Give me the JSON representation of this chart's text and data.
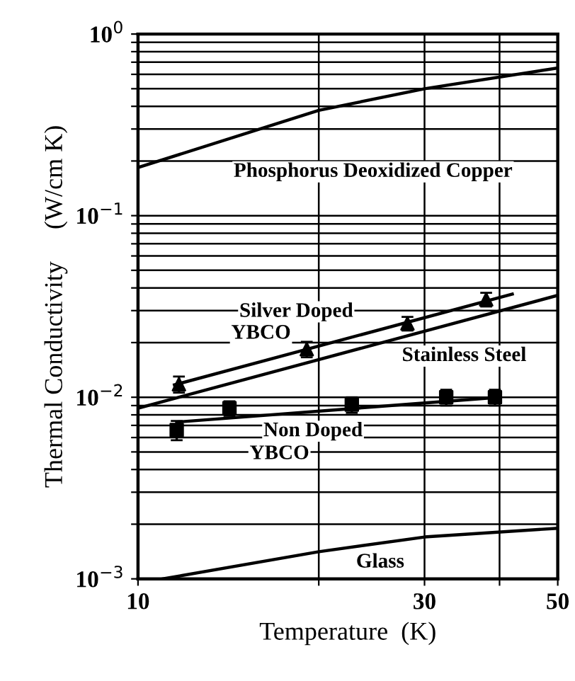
{
  "chart_data": {
    "type": "line",
    "xlabel": "Temperature  (K)",
    "ylabel": "Thermal Conductivity     (W/cm K)",
    "log": "xy",
    "grid": true,
    "xlim": [
      10,
      50
    ],
    "xticks": [
      10,
      {
        "value": 20,
        "label": null
      },
      30,
      {
        "value": 40,
        "label": null
      },
      50
    ],
    "ylim": [
      0.001,
      1
    ],
    "yticks": [
      {
        "value": 0.001,
        "label": "10$^{−3}$"
      },
      {
        "value": 0.002,
        "label": null
      },
      {
        "value": 0.003,
        "label": null
      },
      {
        "value": 0.004,
        "label": null
      },
      {
        "value": 0.005,
        "label": null
      },
      {
        "value": 0.006,
        "label": null
      },
      {
        "value": 0.007,
        "label": null
      },
      {
        "value": 0.008,
        "label": null
      },
      {
        "value": 0.009,
        "label": null
      },
      {
        "value": 0.01,
        "label": "10$^{−2}$"
      },
      {
        "value": 0.02,
        "label": null
      },
      {
        "value": 0.03,
        "label": null
      },
      {
        "value": 0.04,
        "label": null
      },
      {
        "value": 0.05,
        "label": null
      },
      {
        "value": 0.06,
        "label": null
      },
      {
        "value": 0.07,
        "label": null
      },
      {
        "value": 0.08,
        "label": null
      },
      {
        "value": 0.09,
        "label": null
      },
      {
        "value": 0.1,
        "label": "10$^{−1}$"
      },
      {
        "value": 0.2,
        "label": null
      },
      {
        "value": 0.3,
        "label": null
      },
      {
        "value": 0.4,
        "label": null
      },
      {
        "value": 0.5,
        "label": null
      },
      {
        "value": 0.6,
        "label": null
      },
      {
        "value": 0.7,
        "label": null
      },
      {
        "value": 0.8,
        "label": null
      },
      {
        "value": 0.9,
        "label": null
      },
      {
        "value": 1,
        "label": "10$^{0}$"
      }
    ],
    "series": [
      {
        "type": "line",
        "color": "#000000",
        "x": [
          10,
          20,
          30,
          50
        ],
        "values": [
          0.184,
          0.38,
          0.5,
          0.65
        ]
      },
      {
        "type": "line",
        "color": "#000000",
        "x": [
          11,
          20,
          30,
          50
        ],
        "values": [
          0.001,
          0.00141,
          0.0017,
          0.0019
        ]
      },
      {
        "type": "line",
        "color": "#000000",
        "x": [
          10,
          50
        ],
        "values": [
          0.0087,
          0.0364
        ]
      },
      {
        "type": "line",
        "color": "#000000",
        "x": [
          11.5,
          42
        ],
        "values": [
          0.0117,
          0.037
        ]
      },
      {
        "type": "line",
        "color": "#000000",
        "x": [
          11.6,
          40
        ],
        "values": [
          0.0073,
          0.01
        ]
      },
      {
        "type": "scatter",
        "color": "#000000",
        "marker": "triangle",
        "x": [
          11.7,
          19.1,
          28.1,
          38.0
        ],
        "values": [
          0.0118,
          0.0184,
          0.0255,
          0.0346
        ],
        "errors": [
          0.0012,
          0.0018,
          0.0022,
          0.003
        ]
      },
      {
        "type": "scatter",
        "color": "#000000",
        "marker": "square",
        "x": [
          11.6,
          14.2,
          22.7,
          32.6,
          39.3
        ],
        "values": [
          0.0066,
          0.0087,
          0.0091,
          0.01,
          0.01
        ],
        "errors": [
          0.0008,
          0.0008,
          0.0009,
          0.001,
          0.001
        ]
      }
    ],
    "annotations": [
      "Phosphorus Deoxidized Copper",
      "Silver Doped",
      "YBCO",
      "Stainless Steel",
      "Non Doped",
      "YBCO",
      "Glass"
    ]
  }
}
